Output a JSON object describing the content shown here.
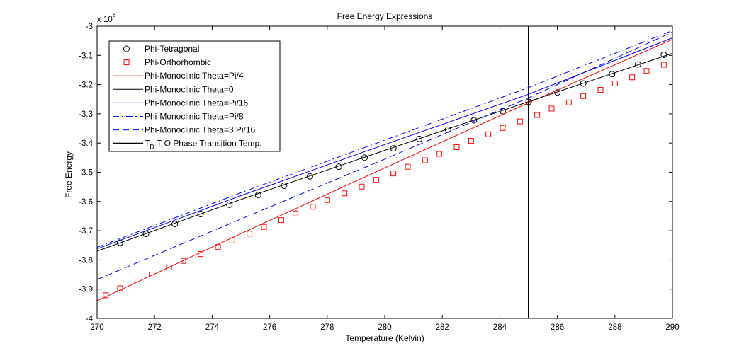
{
  "chart_data": {
    "type": "line",
    "title": "Free Energy Expressions",
    "xlabel": "Temperature (Kelvin)",
    "ylabel": "Free Energy",
    "y_scale_multiplier": "x 10",
    "y_scale_exponent": "6",
    "xlim": [
      270,
      290
    ],
    "ylim": [
      -4,
      -3
    ],
    "xticks": [
      270,
      272,
      274,
      276,
      278,
      280,
      282,
      284,
      286,
      288,
      290
    ],
    "yticks": [
      -4,
      -3.9,
      -3.8,
      -3.7,
      -3.6,
      -3.5,
      -3.4,
      -3.3,
      -3.2,
      -3.1,
      -3
    ],
    "grid": false,
    "legend_position": "top-left",
    "vertical_line_x": 285,
    "series": [
      {
        "name": "Phi-Tetragonal",
        "color": "#000000",
        "style": "marker-circle",
        "x": [
          270.8,
          271.7,
          272.7,
          273.6,
          274.6,
          275.6,
          276.5,
          277.4,
          278.4,
          279.3,
          280.3,
          281.2,
          282.2,
          283.1,
          284.1,
          285.0,
          286.0,
          286.9,
          287.9,
          288.8,
          289.7
        ],
        "y": [
          -3.741,
          -3.711,
          -3.677,
          -3.643,
          -3.611,
          -3.578,
          -3.546,
          -3.514,
          -3.481,
          -3.45,
          -3.418,
          -3.386,
          -3.354,
          -3.322,
          -3.291,
          -3.259,
          -3.227,
          -3.196,
          -3.164,
          -3.131,
          -3.098
        ]
      },
      {
        "name": "Phi-Orthorhombic",
        "color": "#ff0000",
        "style": "marker-square",
        "x": [
          270.3,
          270.8,
          271.4,
          271.9,
          272.5,
          273.0,
          273.6,
          274.2,
          274.7,
          275.3,
          275.8,
          276.4,
          276.9,
          277.5,
          278.0,
          278.6,
          279.2,
          279.7,
          280.3,
          280.8,
          281.4,
          281.9,
          282.5,
          283.0,
          283.6,
          284.1,
          284.7,
          285.3,
          285.8,
          286.4,
          286.9,
          287.5,
          288.0,
          288.6,
          289.1,
          289.7
        ],
        "y": [
          -3.921,
          -3.897,
          -3.874,
          -3.85,
          -3.826,
          -3.803,
          -3.78,
          -3.756,
          -3.733,
          -3.71,
          -3.687,
          -3.664,
          -3.641,
          -3.618,
          -3.595,
          -3.572,
          -3.549,
          -3.526,
          -3.504,
          -3.481,
          -3.459,
          -3.437,
          -3.414,
          -3.392,
          -3.37,
          -3.348,
          -3.326,
          -3.304,
          -3.282,
          -3.261,
          -3.239,
          -3.218,
          -3.196,
          -3.175,
          -3.153,
          -3.132
        ]
      },
      {
        "name": "Phi-Monoclinic Theta=Pi/4",
        "color": "#ff0000",
        "style": "solid",
        "x": [
          270,
          275,
          280,
          285,
          290
        ],
        "y": [
          -3.94,
          -3.71,
          -3.485,
          -3.262,
          -3.045
        ]
      },
      {
        "name": "Phi-Monoclinic Theta=0",
        "color": "#000000",
        "style": "solid",
        "x": [
          270,
          275,
          280,
          285,
          290
        ],
        "y": [
          -3.77,
          -3.593,
          -3.425,
          -3.258,
          -3.093
        ]
      },
      {
        "name": "Phi-Monoclinic Theta=Pi/16",
        "color": "#0000ff",
        "style": "solid",
        "x": [
          270,
          275,
          280,
          285,
          290
        ],
        "y": [
          -3.762,
          -3.58,
          -3.405,
          -3.233,
          -3.04
        ]
      },
      {
        "name": "Phi-Monoclinic Theta=Pi/8",
        "color": "#0000ff",
        "style": "dashdot",
        "x": [
          270,
          275,
          280,
          285,
          290
        ],
        "y": [
          -3.757,
          -3.57,
          -3.39,
          -3.21,
          -3.015
        ]
      },
      {
        "name": "Phi-Monoclinic Theta=3 Pi/16",
        "color": "#0000ff",
        "style": "dashed",
        "x": [
          270,
          275,
          280,
          285,
          290
        ],
        "y": [
          -3.867,
          -3.66,
          -3.455,
          -3.245,
          -3.02
        ]
      },
      {
        "name": "T",
        "name_subscript": "D",
        "name_suffix": " T-O Phase Transition Temp.",
        "color": "#000000",
        "style": "thick-vertical",
        "x": [
          285,
          285
        ],
        "y": [
          -4,
          -3
        ]
      }
    ]
  }
}
